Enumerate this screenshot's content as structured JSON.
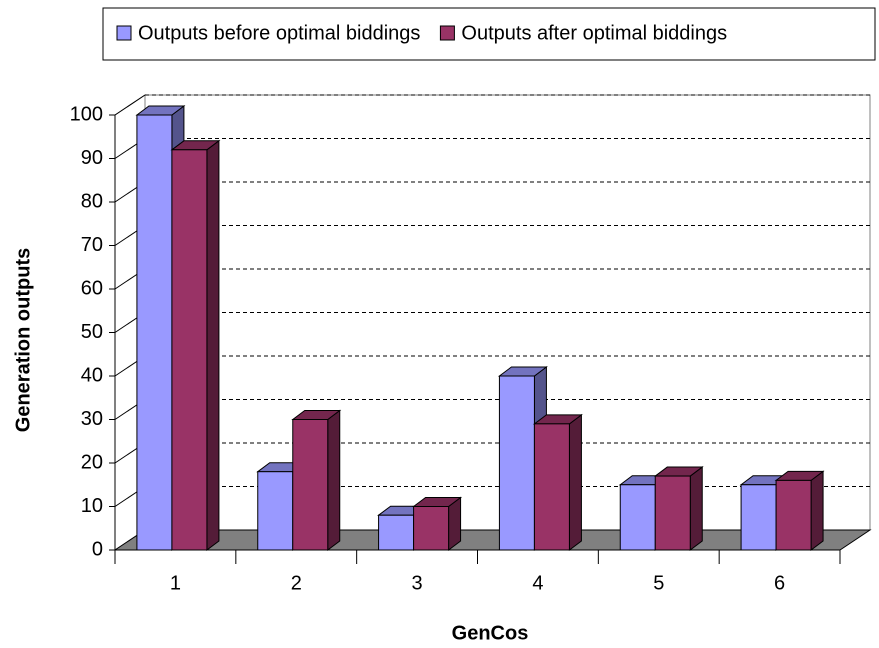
{
  "chart_data": {
    "type": "bar3d",
    "categories": [
      "1",
      "2",
      "3",
      "4",
      "5",
      "6"
    ],
    "series": [
      {
        "name": "Outputs before optimal biddings",
        "color": "#9999ff",
        "values": [
          100,
          18,
          8,
          40,
          15,
          15
        ]
      },
      {
        "name": "Outputs after optimal biddings",
        "color": "#993366",
        "values": [
          92,
          30,
          10,
          29,
          17,
          16
        ]
      }
    ],
    "xlabel": "GenCos",
    "ylabel": "Generation outputs",
    "ylim": [
      0,
      100
    ],
    "yticks": [
      0,
      10,
      20,
      30,
      40,
      50,
      60,
      70,
      80,
      90,
      100
    ],
    "grid": true,
    "legend": "top"
  }
}
